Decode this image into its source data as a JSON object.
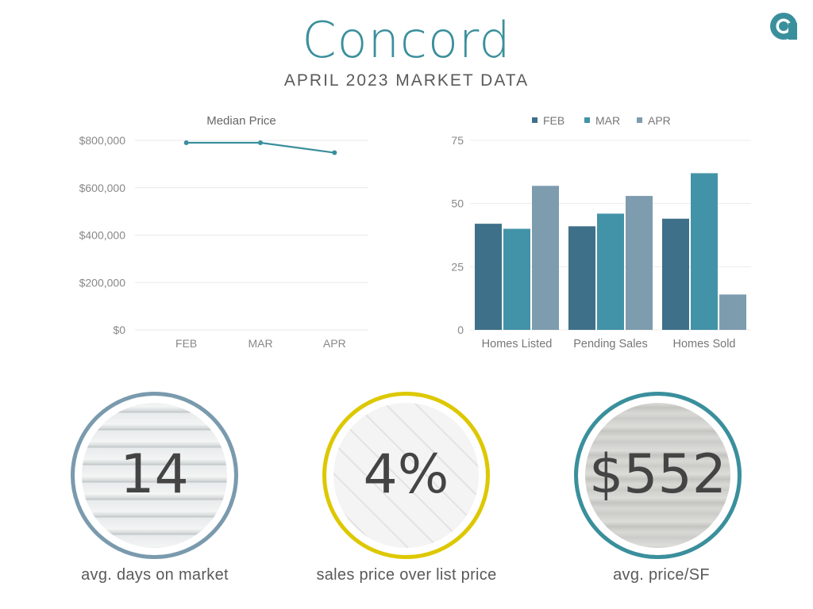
{
  "header": {
    "title": "Concord",
    "subtitle": "APRIL 2023 MARKET DATA"
  },
  "logo": {
    "icon": "a-logo-icon",
    "color": "#3a8f9c"
  },
  "chart_data": [
    {
      "type": "line",
      "title": "Median Price",
      "categories": [
        "FEB",
        "MAR",
        "APR"
      ],
      "series": [
        {
          "values": [
            790000,
            790000,
            748000
          ]
        }
      ],
      "ylim": [
        0,
        800000
      ],
      "yticks": [
        "$0",
        "$200,000",
        "$400,000",
        "$600,000",
        "$800,000"
      ],
      "ytick_values": [
        0,
        200000,
        400000,
        600000,
        800000
      ],
      "grid": true,
      "color": "#3a8f9c"
    },
    {
      "type": "bar",
      "title": "",
      "categories": [
        "Homes Listed",
        "Pending Sales",
        "Homes Sold"
      ],
      "series": [
        {
          "name": "FEB",
          "values": [
            42,
            41,
            44
          ],
          "color": "#3f7089"
        },
        {
          "name": "MAR",
          "values": [
            40,
            46,
            62
          ],
          "color": "#4393a8"
        },
        {
          "name": "APR",
          "values": [
            57,
            53,
            14
          ],
          "color": "#7d9cae"
        }
      ],
      "ylim": [
        0,
        75
      ],
      "yticks": [
        "0",
        "25",
        "50",
        "75"
      ],
      "ytick_values": [
        0,
        25,
        50,
        75
      ],
      "legend": "top",
      "grid": true
    }
  ],
  "stats": [
    {
      "value": "14",
      "label": "avg. days on market",
      "ring_color": "#7a9aad",
      "texture": "horizontal-siding"
    },
    {
      "value": "4%",
      "label": "sales price over list price",
      "ring_color": "#ddc800",
      "texture": "herringbone-tile"
    },
    {
      "value": "$552",
      "label": "avg. price/SF",
      "ring_color": "#3a8f9c",
      "texture": "weathered-wood"
    }
  ]
}
